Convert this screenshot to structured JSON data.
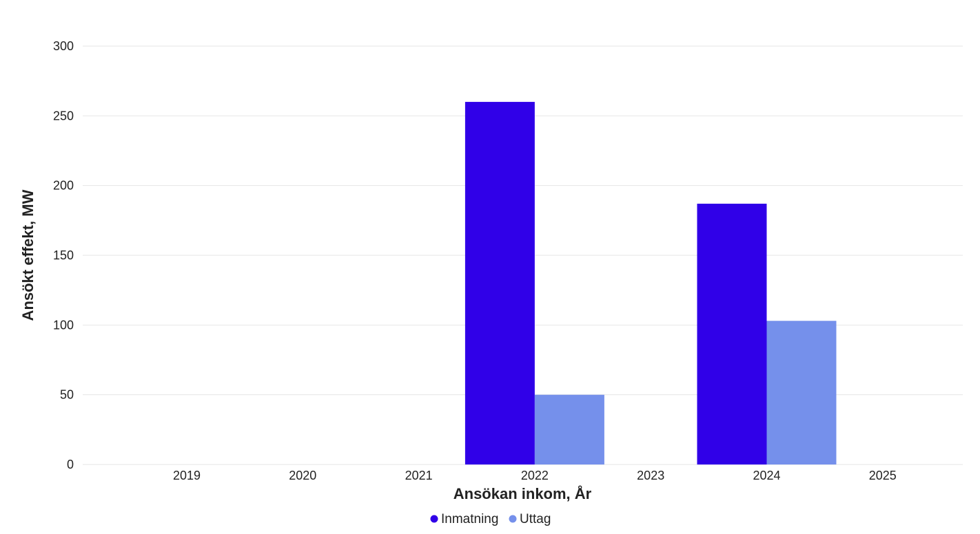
{
  "chart_data": {
    "type": "bar",
    "title": "",
    "xlabel": "Ansökan inkom, År",
    "ylabel": "Ansökt effekt, MW",
    "categories": [
      "2019",
      "2020",
      "2021",
      "2022",
      "2023",
      "2024",
      "2025"
    ],
    "series": [
      {
        "name": "Inmatning",
        "color": "#3000e8",
        "values": [
          0,
          0,
          0,
          260,
          0,
          187,
          0
        ]
      },
      {
        "name": "Uttag",
        "color": "#7590eb",
        "values": [
          0,
          0,
          0,
          50,
          0,
          103,
          0
        ]
      }
    ],
    "ylim": [
      0,
      300
    ],
    "yticks": [
      0,
      50,
      100,
      150,
      200,
      250,
      300
    ],
    "grid": true,
    "legend": "bottom-center"
  }
}
